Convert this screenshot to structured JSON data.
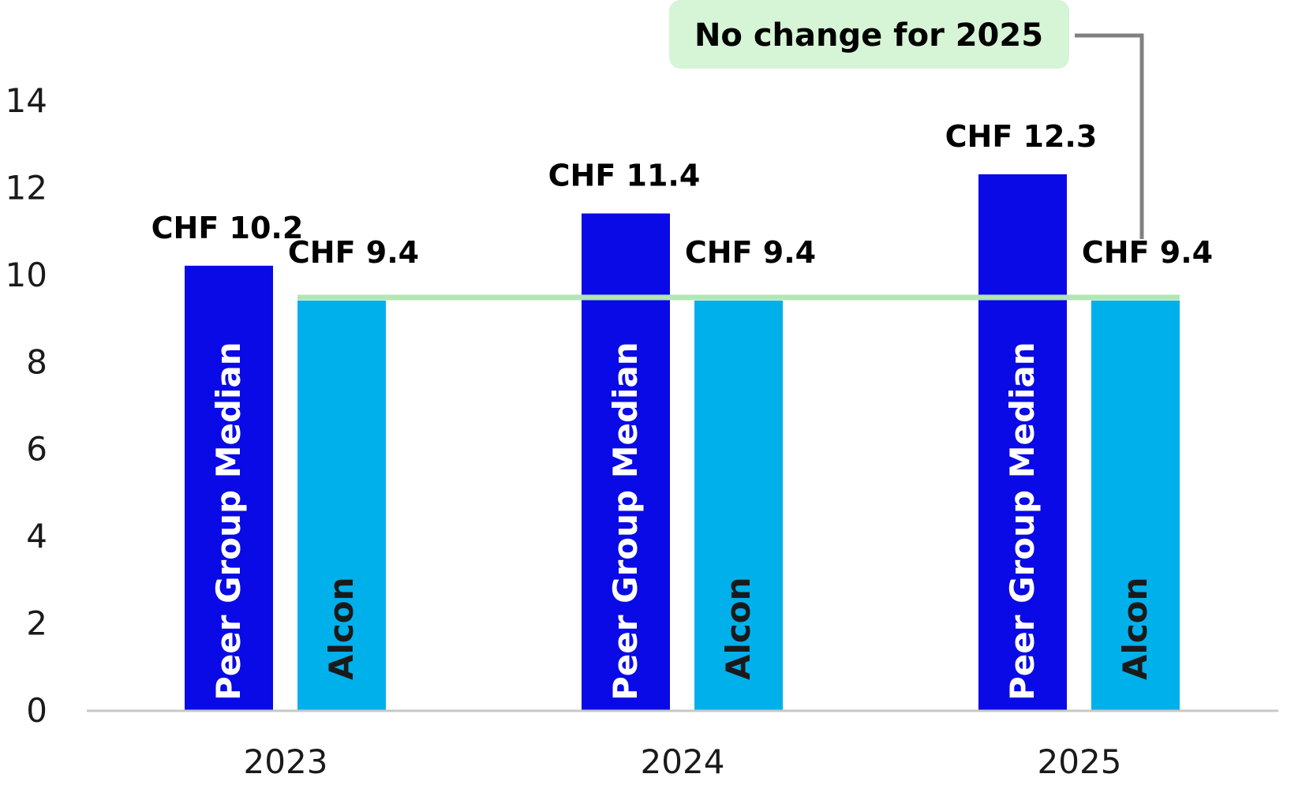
{
  "chart_data": {
    "type": "bar",
    "categories": [
      "2023",
      "2024",
      "2025"
    ],
    "series": [
      {
        "name": "Peer Group Median",
        "values": [
          10.2,
          11.4,
          12.3
        ],
        "labels": [
          "CHF 10.2",
          "CHF 11.4",
          "CHF 12.3"
        ],
        "color": "#0a0ae6",
        "label_color": "#ffffff"
      },
      {
        "name": "Alcon",
        "values": [
          9.4,
          9.4,
          9.4
        ],
        "labels": [
          "CHF 9.4",
          "CHF 9.4",
          "CHF 9.4"
        ],
        "color": "#00b0eb",
        "label_color": "#1a1a1a"
      }
    ],
    "ylim": [
      0,
      14
    ],
    "yticks": [
      "0",
      "2",
      "4",
      "6",
      "8",
      "10",
      "12",
      "14"
    ],
    "grid": false,
    "legend": "none",
    "reference_line": {
      "value": 9.4,
      "color": "#b3e6b3"
    },
    "annotation": {
      "text": "No change for 2025",
      "box_color": "#d6f5d6",
      "connector_color": "#808080"
    },
    "axis_color": "#c8c8c8"
  }
}
